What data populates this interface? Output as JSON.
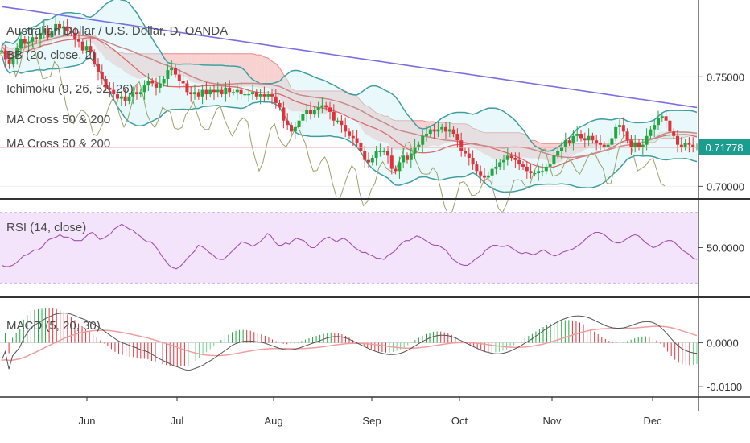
{
  "header": {
    "symbol_title": "Australian Dollar / U.S. Dollar, D, OANDA",
    "indicator_bb": "BB (20, close, 2)",
    "indicator_ichimoku": "Ichimoku (9, 26, 52, 26)",
    "indicator_ma1": "MA Cross 50 & 200",
    "indicator_ma2": "MA Cross 50 & 200"
  },
  "colors": {
    "up": "#22a63f",
    "down": "#e0323a",
    "bb_band": "#3f9fa0",
    "bb_basis": "#d96b6b",
    "ma200": "#7b6fe0",
    "chikou": "#9aa36a",
    "cloud_red": "#f4b3b3",
    "cloud_green": "#b9e3c8",
    "rsi_line": "#a24fb0",
    "rsi_bg": "#f3e4fb",
    "macd_line": "#555555",
    "signal_line": "#f29d9d",
    "hist_slow": "#68d38a",
    "price_badge": "#1a9c8f"
  },
  "price_badge": "0.71778",
  "chart_data": [
    {
      "type": "candlestick",
      "panel": "price",
      "title": "Australian Dollar / U.S. Dollar, D, OANDA",
      "ylim": [
        0.695,
        0.785
      ],
      "y_ticks": [
        "0.75000",
        "0.70000"
      ],
      "x_ticks": [
        "Jun",
        "Jul",
        "Aug",
        "Sep",
        "Oct",
        "Nov",
        "Dec"
      ],
      "closes": [
        0.762,
        0.758,
        0.756,
        0.759,
        0.763,
        0.767,
        0.765,
        0.766,
        0.768,
        0.767,
        0.77,
        0.772,
        0.768,
        0.771,
        0.774,
        0.772,
        0.773,
        0.771,
        0.77,
        0.767,
        0.766,
        0.762,
        0.764,
        0.761,
        0.756,
        0.752,
        0.749,
        0.745,
        0.744,
        0.742,
        0.74,
        0.741,
        0.739,
        0.741,
        0.743,
        0.742,
        0.743,
        0.746,
        0.748,
        0.747,
        0.745,
        0.747,
        0.749,
        0.753,
        0.754,
        0.751,
        0.748,
        0.747,
        0.743,
        0.742,
        0.743,
        0.741,
        0.744,
        0.742,
        0.744,
        0.743,
        0.744,
        0.742,
        0.745,
        0.743,
        0.743,
        0.744,
        0.742,
        0.742,
        0.742,
        0.743,
        0.741,
        0.742,
        0.741,
        0.742,
        0.741,
        0.738,
        0.736,
        0.73,
        0.728,
        0.725,
        0.727,
        0.73,
        0.733,
        0.735,
        0.733,
        0.735,
        0.736,
        0.737,
        0.736,
        0.734,
        0.73,
        0.73,
        0.728,
        0.725,
        0.723,
        0.722,
        0.72,
        0.716,
        0.712,
        0.711,
        0.713,
        0.716,
        0.716,
        0.716,
        0.714,
        0.708,
        0.707,
        0.711,
        0.714,
        0.712,
        0.715,
        0.718,
        0.719,
        0.723,
        0.724,
        0.726,
        0.725,
        0.726,
        0.727,
        0.725,
        0.726,
        0.724,
        0.721,
        0.716,
        0.715,
        0.713,
        0.71,
        0.707,
        0.705,
        0.704,
        0.705,
        0.708,
        0.709,
        0.711,
        0.712,
        0.714,
        0.713,
        0.712,
        0.71,
        0.709,
        0.707,
        0.706,
        0.706,
        0.707,
        0.707,
        0.709,
        0.71,
        0.714,
        0.716,
        0.718,
        0.721,
        0.72,
        0.723,
        0.724,
        0.722,
        0.721,
        0.723,
        0.721,
        0.72,
        0.719,
        0.718,
        0.719,
        0.722,
        0.727,
        0.728,
        0.725,
        0.721,
        0.718,
        0.72,
        0.718,
        0.719,
        0.723,
        0.726,
        0.728,
        0.731,
        0.732,
        0.73,
        0.725,
        0.723,
        0.719,
        0.718,
        0.72,
        0.719,
        0.718,
        0.718
      ]
    },
    {
      "type": "line",
      "panel": "rsi",
      "label": "RSI (14, close)",
      "ylim": [
        10,
        90
      ],
      "y_ticks": [
        "50.0000"
      ],
      "values": [
        35,
        34,
        34,
        35,
        37,
        40,
        43,
        44,
        46,
        48,
        48,
        50,
        54,
        57,
        58,
        59,
        61,
        59,
        59,
        58,
        56,
        56,
        56,
        59,
        62,
        63,
        60,
        57,
        58,
        60,
        62,
        66,
        68,
        70,
        68,
        66,
        65,
        62,
        60,
        57,
        55,
        55,
        52,
        48,
        43,
        39,
        35,
        33,
        32,
        34,
        37,
        41,
        44,
        47,
        52,
        51,
        49,
        46,
        44,
        41,
        40,
        40,
        43,
        46,
        49,
        52,
        55,
        54,
        53,
        51,
        53,
        55,
        58,
        62,
        60,
        55,
        52,
        52,
        54,
        53,
        56,
        58,
        57,
        56,
        53,
        50,
        50,
        53,
        56,
        58,
        59,
        57,
        55,
        57,
        58,
        56,
        53,
        50,
        48,
        46,
        46,
        44,
        43,
        41,
        41,
        40,
        43,
        45,
        47,
        51,
        54,
        56,
        56,
        58,
        60,
        59,
        57,
        55,
        53,
        52,
        52,
        50,
        48,
        44,
        40,
        38,
        36,
        35,
        35,
        37,
        40,
        42,
        44,
        48,
        50,
        52,
        52,
        51,
        51,
        52,
        50,
        48,
        46,
        45,
        46,
        45,
        44,
        45,
        47,
        48,
        46,
        44,
        43,
        44,
        46,
        47,
        48,
        49,
        51,
        53,
        56,
        59,
        61,
        63,
        63,
        62,
        60,
        57,
        55,
        54,
        54,
        56,
        58,
        60,
        61,
        60,
        57,
        54,
        52,
        50,
        51,
        53,
        55,
        56,
        56,
        54,
        51,
        48,
        46,
        44,
        41,
        40
      ]
    },
    {
      "type": "line+bar",
      "panel": "macd",
      "label": "MACD (5, 20, 30)",
      "ylim": [
        -0.012,
        0.01
      ],
      "y_ticks": [
        "0.0000",
        "-0.0100"
      ],
      "macd": [
        -0.004,
        -0.002,
        -0.006,
        -0.003,
        -0.002,
        -0.001,
        0.001,
        0.0022,
        0.0034,
        0.004,
        0.0045,
        0.005,
        0.0055,
        0.0059,
        0.0063,
        0.0066,
        0.0067,
        0.0068,
        0.0067,
        0.0065,
        0.0062,
        0.0058,
        0.0055,
        0.0052,
        0.0048,
        0.0043,
        0.0038,
        0.0033,
        0.0027,
        0.0021,
        0.0015,
        0.0009,
        0.0004,
        0.0,
        -0.0003,
        -0.0006,
        -0.0009,
        -0.0012,
        -0.0016,
        -0.0018,
        -0.0021,
        -0.0026,
        -0.0031,
        -0.0036,
        -0.004,
        -0.0044,
        -0.0048,
        -0.0052,
        -0.0055,
        -0.0058,
        -0.0061,
        -0.0063,
        -0.0061,
        -0.0058,
        -0.0055,
        -0.0051,
        -0.0046,
        -0.0041,
        -0.0036,
        -0.003,
        -0.0024,
        -0.0018,
        -0.0012,
        -0.0006,
        -0.0002,
        0.0001,
        0.0003,
        0.0004,
        0.0004,
        0.0003,
        0.0002,
        0.0001,
        -0.0001,
        -0.0004,
        -0.0007,
        -0.001,
        -0.0013,
        -0.0015,
        -0.0016,
        -0.0016,
        -0.0015,
        -0.0013,
        -0.001,
        -0.0007,
        -0.0004,
        -0.0001,
        0.0002,
        0.0005,
        0.0008,
        0.0011,
        0.0013,
        0.0014,
        0.0014,
        0.0013,
        0.0011,
        0.0008,
        0.0004,
        0.0,
        -0.0004,
        -0.0008,
        -0.0012,
        -0.0016,
        -0.0019,
        -0.0022,
        -0.0024,
        -0.0026,
        -0.0027,
        -0.0027,
        -0.0026,
        -0.0024,
        -0.0021,
        -0.0017,
        -0.0012,
        -0.0007,
        -0.0002,
        0.0003,
        0.0007,
        0.0011,
        0.0014,
        0.0016,
        0.0017,
        0.0017,
        0.0016,
        0.0014,
        0.0011,
        0.0007,
        0.0003,
        -0.0001,
        -0.0005,
        -0.0009,
        -0.0013,
        -0.0017,
        -0.002,
        -0.0022,
        -0.0024,
        -0.0025,
        -0.0025,
        -0.0024,
        -0.0022,
        -0.0019,
        -0.0015,
        -0.0011,
        -0.0006,
        -0.0001,
        0.0004,
        0.0009,
        0.0015,
        0.0021,
        0.0027,
        0.0033,
        0.0038,
        0.0043,
        0.0048,
        0.0052,
        0.0055,
        0.0058,
        0.006,
        0.0061,
        0.0061,
        0.006,
        0.0058,
        0.0055,
        0.0051,
        0.0047,
        0.0043,
        0.0039,
        0.0036,
        0.0034,
        0.0033,
        0.0033,
        0.0034,
        0.0036,
        0.0039,
        0.0042,
        0.0045,
        0.0047,
        0.0048,
        0.0048,
        0.0046,
        0.0042,
        0.0036,
        0.0028,
        0.0019,
        0.0009,
        0.0,
        -0.0008,
        -0.0014,
        -0.0018,
        -0.0021,
        -0.0023,
        -0.0024
      ]
    }
  ]
}
